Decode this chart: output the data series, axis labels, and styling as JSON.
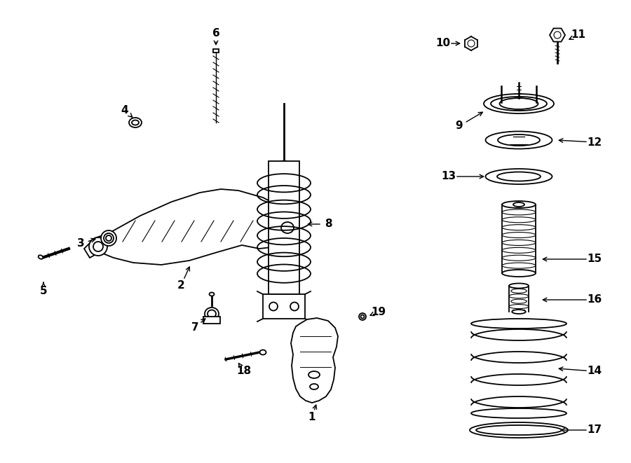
{
  "background_color": "#ffffff",
  "line_color": "#000000",
  "lw": 1.3
}
